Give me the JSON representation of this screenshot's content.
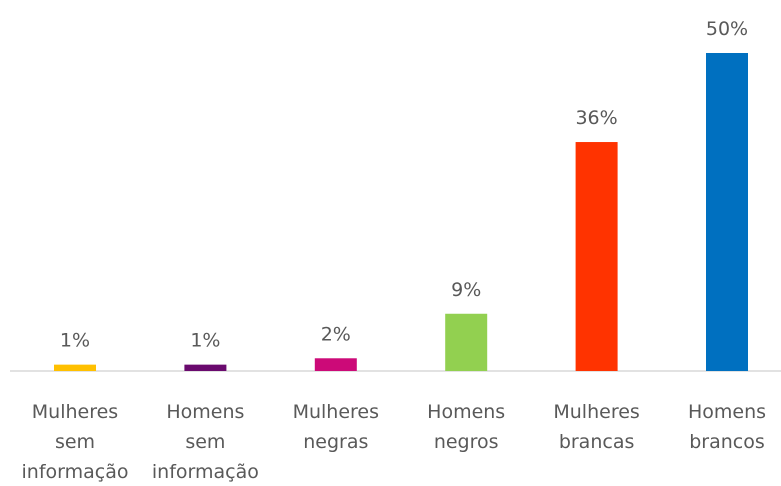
{
  "chart_data": {
    "type": "bar",
    "categories": [
      "Mulheres sem informação",
      "Homens sem informação",
      "Mulheres negras",
      "Homens negros",
      "Mulheres brancas",
      "Homens brancos"
    ],
    "values": [
      1,
      1,
      2,
      9,
      36,
      50
    ],
    "value_labels": [
      "1%",
      "1%",
      "2%",
      "9%",
      "36%",
      "50%"
    ],
    "colors": [
      "#ffc000",
      "#6a0a6e",
      "#cc0a78",
      "#92d050",
      "#ff3300",
      "#0070c0"
    ],
    "ylim": [
      0,
      50
    ]
  }
}
